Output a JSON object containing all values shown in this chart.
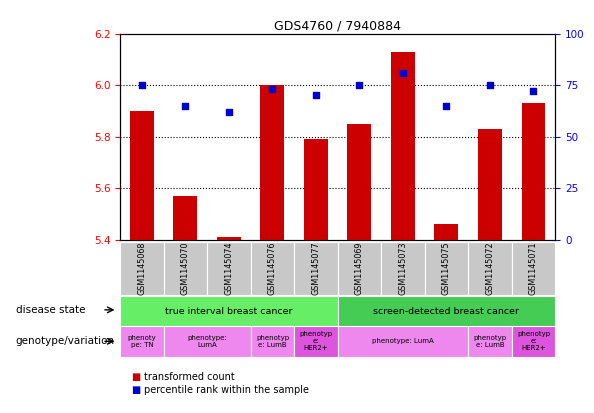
{
  "title": "GDS4760 / 7940884",
  "samples": [
    "GSM1145068",
    "GSM1145070",
    "GSM1145074",
    "GSM1145076",
    "GSM1145077",
    "GSM1145069",
    "GSM1145073",
    "GSM1145075",
    "GSM1145072",
    "GSM1145071"
  ],
  "bar_values": [
    5.9,
    5.57,
    5.41,
    6.0,
    5.79,
    5.85,
    6.13,
    5.46,
    5.83,
    5.93
  ],
  "bar_base": 5.4,
  "dot_values": [
    75,
    65,
    62,
    73,
    70,
    75,
    81,
    65,
    75,
    72
  ],
  "ylim_left": [
    5.4,
    6.2
  ],
  "ylim_right": [
    0,
    100
  ],
  "yticks_left": [
    5.4,
    5.6,
    5.8,
    6.0,
    6.2
  ],
  "yticks_right": [
    0,
    25,
    50,
    75,
    100
  ],
  "bar_color": "#cc0000",
  "dot_color": "#0000cc",
  "disease_state_row": [
    {
      "label": "true interval breast cancer",
      "start": 0,
      "end": 5,
      "color": "#66ee66"
    },
    {
      "label": "screen-detected breast cancer",
      "start": 5,
      "end": 10,
      "color": "#44cc55"
    }
  ],
  "genotype_row": [
    {
      "label": "phenoty\npe: TN",
      "start": 0,
      "end": 1,
      "color": "#ee88ee"
    },
    {
      "label": "phenotype:\nLumA",
      "start": 1,
      "end": 3,
      "color": "#ee88ee"
    },
    {
      "label": "phenotyp\ne: LumB",
      "start": 3,
      "end": 4,
      "color": "#ee88ee"
    },
    {
      "label": "phenotyp\ne:\nHER2+",
      "start": 4,
      "end": 5,
      "color": "#dd55dd"
    },
    {
      "label": "phenotype: LumA",
      "start": 5,
      "end": 8,
      "color": "#ee88ee"
    },
    {
      "label": "phenotyp\ne: LumB",
      "start": 8,
      "end": 9,
      "color": "#ee88ee"
    },
    {
      "label": "phenotyp\ne:\nHER2+",
      "start": 9,
      "end": 10,
      "color": "#dd55dd"
    }
  ],
  "left_label_disease": "disease state",
  "left_label_geno": "genotype/variation",
  "legend_bar_label": "transformed count",
  "legend_dot_label": "percentile rank within the sample",
  "sample_box_color": "#c8c8c8",
  "grid_lines": [
    5.6,
    5.8,
    6.0
  ]
}
